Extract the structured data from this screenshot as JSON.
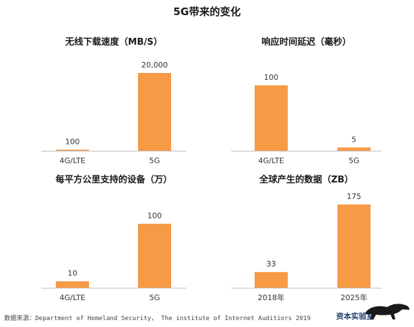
{
  "page": {
    "title": "5G带来的变化",
    "source": "数据来源：Department of Homeland Security， The institute of Internet Auditiors 2019",
    "logo_text": "资本实验室"
  },
  "colors": {
    "bar": "#f79a45",
    "axis": "#bfbfbf"
  },
  "chart_data": [
    {
      "type": "bar",
      "title": "无线下载速度（MB/S）",
      "categories": [
        "4G/LTE",
        "5G"
      ],
      "values": [
        100,
        20000
      ],
      "labels": [
        "100",
        "20,000"
      ],
      "ylim": [
        0,
        20000
      ],
      "xlabel": "",
      "ylabel": ""
    },
    {
      "type": "bar",
      "title": "响应时间延迟（毫秒）",
      "categories": [
        "4G/LTE",
        "5G"
      ],
      "values": [
        100,
        5
      ],
      "labels": [
        "100",
        "5"
      ],
      "ylim": [
        0,
        100
      ],
      "xlabel": "",
      "ylabel": ""
    },
    {
      "type": "bar",
      "title": "每平方公里支持的设备（万）",
      "categories": [
        "4G/LTE",
        "5G"
      ],
      "values": [
        10,
        100
      ],
      "labels": [
        "10",
        "100"
      ],
      "ylim": [
        0,
        100
      ],
      "xlabel": "",
      "ylabel": ""
    },
    {
      "type": "bar",
      "title": "全球产生的数据（ZB）",
      "categories": [
        "2018年",
        "2025年"
      ],
      "values": [
        33,
        175
      ],
      "labels": [
        "33",
        "175"
      ],
      "ylim": [
        0,
        175
      ],
      "xlabel": "",
      "ylabel": ""
    }
  ]
}
